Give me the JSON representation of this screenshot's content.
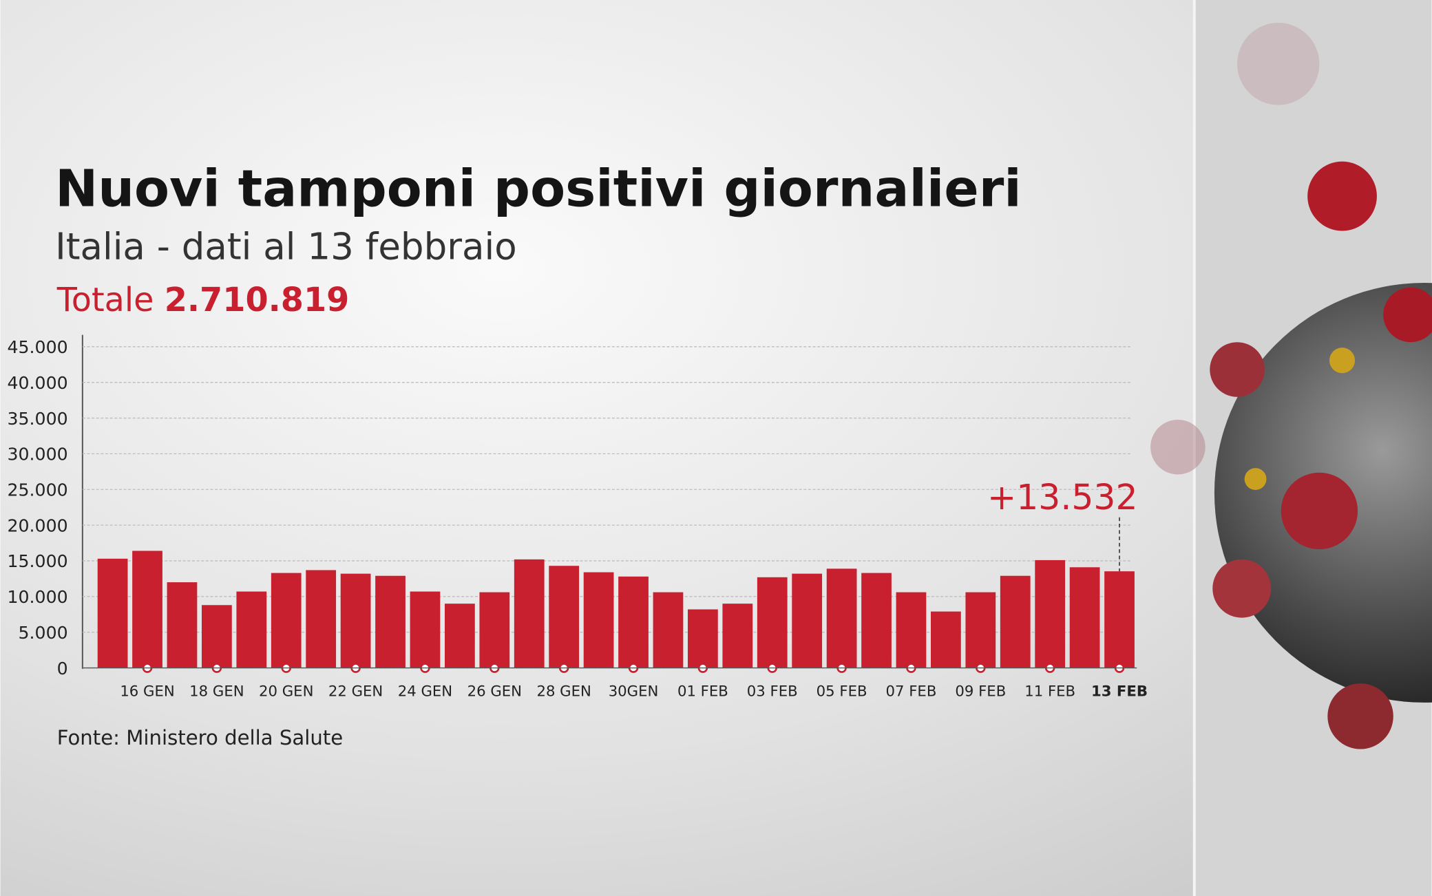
{
  "chart_data": {
    "type": "bar",
    "title": "Nuovi tamponi positivi giornalieri",
    "subtitle": "Italia - dati al 13 febbraio",
    "total_label": "Totale",
    "total_value": "2.710.819",
    "source": "Fonte: Ministero della Salute",
    "categories": [
      null,
      "16 GEN",
      null,
      "18 GEN",
      null,
      "20 GEN",
      null,
      "22 GEN",
      null,
      "24 GEN",
      null,
      "26 GEN",
      null,
      "28 GEN",
      null,
      "30GEN",
      null,
      "01 FEB",
      null,
      "03 FEB",
      null,
      "05 FEB",
      null,
      "07 FEB",
      null,
      "09 FEB",
      null,
      "11 FEB",
      null,
      "13 FEB"
    ],
    "values": [
      15300,
      16400,
      12000,
      8800,
      10700,
      13300,
      13700,
      13200,
      12900,
      10700,
      9000,
      10600,
      15200,
      14300,
      13400,
      12800,
      10600,
      8200,
      9000,
      12700,
      13200,
      13900,
      13300,
      10600,
      7900,
      10600,
      12900,
      15100,
      14100,
      13532
    ],
    "value_labels": [
      null,
      null,
      null,
      null,
      null,
      null,
      null,
      null,
      null,
      null,
      null,
      null,
      null,
      null,
      null,
      null,
      null,
      null,
      null,
      null,
      null,
      null,
      null,
      null,
      null,
      null,
      null,
      null,
      null,
      "+13.532"
    ],
    "color": "#c8202f",
    "ylim": [
      0,
      45000
    ],
    "yticks": [
      0,
      {
        "value": 5000,
        "label": "5.000"
      },
      {
        "value": 10000,
        "label": "10.000"
      },
      {
        "value": 15000,
        "label": "15.000"
      },
      {
        "value": 20000,
        "label": "20.000"
      },
      {
        "value": 25000,
        "label": "25.000"
      },
      {
        "value": 30000,
        "label": "30.000"
      },
      {
        "value": 35000,
        "label": "35.000"
      },
      {
        "value": 40000,
        "label": "40.000"
      },
      {
        "value": 45000,
        "label": "45.000"
      }
    ],
    "grid": true
  }
}
